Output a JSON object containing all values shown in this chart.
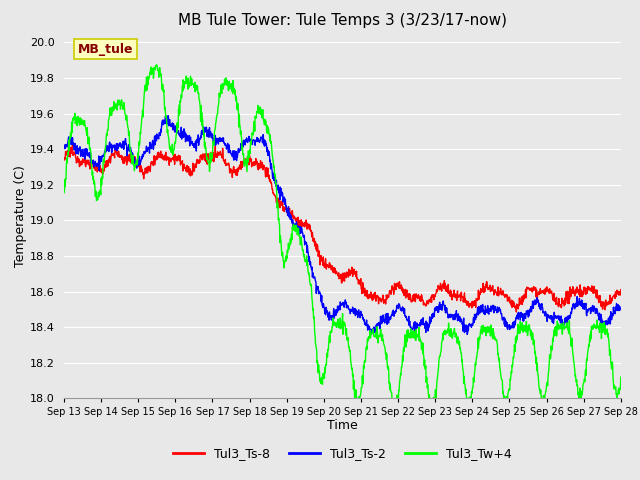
{
  "title": "MB Tule Tower: Tule Temps 3 (3/23/17-now)",
  "xlabel": "Time",
  "ylabel": "Temperature (C)",
  "ylim": [
    18.0,
    20.05
  ],
  "yticks": [
    18.0,
    18.2,
    18.4,
    18.6,
    18.8,
    19.0,
    19.2,
    19.4,
    19.6,
    19.8,
    20.0
  ],
  "xtick_labels": [
    "Sep 13",
    "Sep 14",
    "Sep 15",
    "Sep 16",
    "Sep 17",
    "Sep 18",
    "Sep 19",
    "Sep 20",
    "Sep 21",
    "Sep 22",
    "Sep 23",
    "Sep 24",
    "Sep 25",
    "Sep 26",
    "Sep 27",
    "Sep 28"
  ],
  "legend_labels": [
    "Tul3_Ts-8",
    "Tul3_Ts-2",
    "Tul3_Tw+4"
  ],
  "text_box_label": "MB_tule",
  "text_box_facecolor": "#ffffc0",
  "text_box_edgecolor": "#cccc00",
  "background_color": "#e8e8e8",
  "grid_color": "white",
  "line_width": 1.0,
  "title_fontsize": 11,
  "axis_fontsize": 9,
  "tick_fontsize": 8
}
